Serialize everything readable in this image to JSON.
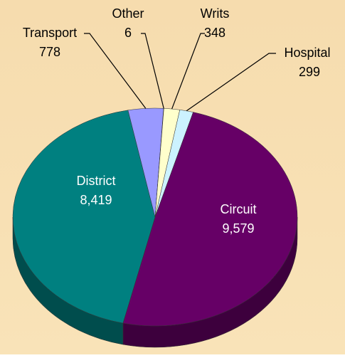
{
  "chart_data": {
    "type": "pie",
    "categories": [
      "Hospital",
      "Circuit",
      "District",
      "Transport",
      "Other",
      "Writs"
    ],
    "values": [
      299,
      9579,
      8419,
      778,
      6,
      348
    ],
    "value_labels": [
      "299",
      "9,579",
      "8,419",
      "778",
      "6",
      "348"
    ],
    "colors": [
      "#ccf2ff",
      "#660066",
      "#008080",
      "#9999ff",
      "#4d1a4d",
      "#ffffcc"
    ],
    "start_angle": 10
  }
}
